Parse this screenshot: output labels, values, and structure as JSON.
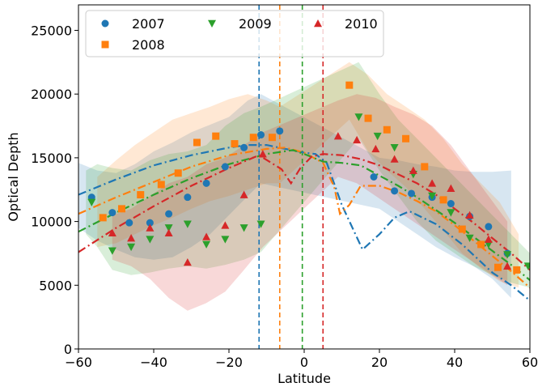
{
  "chart_data": {
    "type": "scatter",
    "xlabel": "Latitude",
    "ylabel": "Optical Depth",
    "xlim": [
      -60,
      60
    ],
    "ylim": [
      0,
      27000
    ],
    "xticks": [
      -60,
      -40,
      -20,
      0,
      20,
      40,
      60
    ],
    "yticks": [
      0,
      5000,
      10000,
      15000,
      20000,
      25000
    ],
    "legend": {
      "placement": "top-left",
      "columns": 3
    },
    "grid": false,
    "series": [
      {
        "name": "2007",
        "color": "#1f77b4",
        "marker": "circle",
        "points": [
          [
            -56.5,
            11900
          ],
          [
            -51,
            10700
          ],
          [
            -46.5,
            9900
          ],
          [
            -41,
            9900
          ],
          [
            -36,
            10600
          ],
          [
            -31,
            11900
          ],
          [
            -26,
            13000
          ],
          [
            -21,
            14300
          ],
          [
            -16,
            15800
          ],
          [
            -11.5,
            16800
          ],
          [
            -6.5,
            17100
          ],
          [
            18.5,
            13500
          ],
          [
            24,
            12400
          ],
          [
            28.5,
            12200
          ],
          [
            34,
            11900
          ],
          [
            39,
            11400
          ],
          [
            44,
            10400
          ],
          [
            49,
            9600
          ],
          [
            54,
            7500
          ]
        ],
        "fit_line": [
          [
            -60,
            12100
          ],
          [
            -50,
            13300
          ],
          [
            -40,
            14400
          ],
          [
            -30,
            15200
          ],
          [
            -20,
            15800
          ],
          [
            -15,
            16000
          ],
          [
            -10,
            16000
          ],
          [
            -5,
            15700
          ],
          [
            0,
            15400
          ],
          [
            3,
            15300
          ],
          [
            6,
            14600
          ],
          [
            10,
            11300
          ],
          [
            15.5,
            7800
          ],
          [
            20,
            9000
          ],
          [
            24,
            10300
          ],
          [
            28,
            10800
          ],
          [
            35,
            9800
          ],
          [
            42,
            8200
          ],
          [
            50,
            6000
          ],
          [
            55,
            5000
          ],
          [
            60,
            3800
          ]
        ],
        "band": {
          "x": [
            -60,
            -55,
            -50,
            -45,
            -40,
            -35,
            -30,
            -25,
            -20,
            -15,
            -11.5,
            20,
            25,
            30,
            35,
            40,
            45,
            50,
            55
          ],
          "upper": [
            14600,
            14000,
            13800,
            14500,
            15500,
            16200,
            17000,
            17600,
            18200,
            19500,
            20000,
            15000,
            14800,
            14500,
            14300,
            14000,
            13900,
            13900,
            14000
          ],
          "lower": [
            9500,
            8500,
            7800,
            7200,
            7000,
            7200,
            8000,
            9000,
            10500,
            12000,
            13000,
            11000,
            10000,
            9000,
            8000,
            7200,
            6500,
            5500,
            4000
          ]
        }
      },
      {
        "name": "2008",
        "color": "#ff7f0e",
        "marker": "square",
        "points": [
          [
            -53.5,
            10300
          ],
          [
            -48.5,
            11000
          ],
          [
            -43.5,
            12100
          ],
          [
            -38,
            12900
          ],
          [
            -33.5,
            13800
          ],
          [
            -28.5,
            16200
          ],
          [
            -23.5,
            16700
          ],
          [
            -18.5,
            16100
          ],
          [
            -13.5,
            16600
          ],
          [
            -8.5,
            16600
          ],
          [
            12,
            20700
          ],
          [
            17,
            18100
          ],
          [
            22,
            17200
          ],
          [
            27,
            16500
          ],
          [
            32,
            14300
          ],
          [
            37,
            11700
          ],
          [
            42,
            9400
          ],
          [
            47,
            8200
          ],
          [
            51.5,
            6400
          ],
          [
            56.5,
            6200
          ]
        ],
        "fit_line": [
          [
            -60,
            10600
          ],
          [
            -50,
            11900
          ],
          [
            -40,
            13100
          ],
          [
            -30,
            14300
          ],
          [
            -20,
            15200
          ],
          [
            -10,
            15700
          ],
          [
            -5,
            15800
          ],
          [
            0,
            15400
          ],
          [
            5,
            14600
          ],
          [
            8,
            12700
          ],
          [
            9.5,
            10600
          ],
          [
            12,
            11300
          ],
          [
            15,
            12800
          ],
          [
            20,
            12800
          ],
          [
            25,
            12300
          ],
          [
            30,
            11600
          ],
          [
            35,
            10800
          ],
          [
            40,
            9700
          ],
          [
            45,
            8500
          ],
          [
            50,
            7300
          ],
          [
            55,
            6100
          ],
          [
            60,
            4800
          ]
        ],
        "band": {
          "x": [
            -55,
            -50,
            -45,
            -40,
            -35,
            -30,
            -25,
            -20,
            -15,
            -10,
            -6.5,
            12,
            17,
            22,
            27,
            32,
            37,
            42,
            47,
            52,
            57
          ],
          "upper": [
            13500,
            14800,
            16000,
            17000,
            18000,
            18500,
            19000,
            19600,
            20000,
            19500,
            19000,
            22500,
            21500,
            20000,
            19000,
            18000,
            16500,
            14500,
            13000,
            11500,
            9000
          ],
          "lower": [
            8000,
            8300,
            9000,
            9700,
            10300,
            11000,
            11600,
            12000,
            12500,
            13000,
            13000,
            18000,
            15500,
            14000,
            12700,
            11000,
            9300,
            7500,
            6300,
            5300,
            4800
          ]
        }
      },
      {
        "name": "2009",
        "color": "#2ca02c",
        "marker": "triangle-down",
        "points": [
          [
            -56.5,
            11500
          ],
          [
            -51,
            7700
          ],
          [
            -46,
            8000
          ],
          [
            -41,
            8600
          ],
          [
            -36,
            9500
          ],
          [
            -31,
            9800
          ],
          [
            -26,
            8200
          ],
          [
            -21,
            8600
          ],
          [
            -16,
            9500
          ],
          [
            -11.5,
            9800
          ],
          [
            14.5,
            18200
          ],
          [
            19.5,
            16700
          ],
          [
            24,
            15800
          ],
          [
            29,
            13700
          ],
          [
            34,
            12000
          ],
          [
            39,
            10700
          ],
          [
            44,
            8700
          ],
          [
            49,
            8200
          ],
          [
            54,
            7400
          ],
          [
            59.5,
            6500
          ]
        ],
        "fit_line": [
          [
            -60,
            9200
          ],
          [
            -50,
            10700
          ],
          [
            -40,
            12100
          ],
          [
            -30,
            13400
          ],
          [
            -20,
            14500
          ],
          [
            -10,
            15300
          ],
          [
            -3,
            15600
          ],
          [
            0,
            15300
          ],
          [
            5,
            14700
          ],
          [
            10,
            14600
          ],
          [
            15,
            14400
          ],
          [
            20,
            13600
          ],
          [
            25,
            12800
          ],
          [
            30,
            11900
          ],
          [
            35,
            10900
          ],
          [
            40,
            9900
          ],
          [
            45,
            8800
          ],
          [
            50,
            7700
          ],
          [
            55,
            6600
          ],
          [
            60,
            5400
          ]
        ],
        "band": {
          "x": [
            -58,
            -55,
            -51,
            -46,
            -41,
            -36,
            -31,
            -26,
            -21,
            -16,
            -11.5,
            14.5,
            20,
            25,
            30,
            35,
            40,
            45,
            50,
            55,
            60
          ],
          "upper": [
            14000,
            14500,
            14200,
            14000,
            14800,
            15300,
            15500,
            16000,
            17500,
            18500,
            19000,
            22500,
            20000,
            18000,
            16500,
            15000,
            13500,
            12000,
            10500,
            9000,
            7500
          ],
          "lower": [
            9000,
            8000,
            6200,
            5800,
            6000,
            6300,
            6500,
            6300,
            6600,
            7000,
            7600,
            16500,
            14000,
            12000,
            10000,
            8500,
            7500,
            6500,
            5800,
            5200,
            4800
          ]
        }
      },
      {
        "name": "2010",
        "color": "#d62728",
        "marker": "triangle-up",
        "points": [
          [
            -51,
            9100
          ],
          [
            -46,
            8700
          ],
          [
            -41,
            9500
          ],
          [
            -36,
            9100
          ],
          [
            -31,
            6800
          ],
          [
            -26,
            8800
          ],
          [
            -21,
            9700
          ],
          [
            -16,
            12100
          ],
          [
            -11,
            15300
          ],
          [
            9,
            16700
          ],
          [
            14,
            16400
          ],
          [
            19,
            15700
          ],
          [
            24,
            14900
          ],
          [
            29,
            14000
          ],
          [
            34,
            13000
          ],
          [
            39,
            12600
          ],
          [
            44,
            10500
          ],
          [
            49,
            8600
          ],
          [
            54,
            6500
          ]
        ],
        "fit_line": [
          [
            -60,
            7600
          ],
          [
            -50,
            9500
          ],
          [
            -40,
            11200
          ],
          [
            -30,
            12800
          ],
          [
            -20,
            14200
          ],
          [
            -12,
            15200
          ],
          [
            -6,
            14100
          ],
          [
            -3.5,
            13000
          ],
          [
            -1,
            14200
          ],
          [
            2,
            15100
          ],
          [
            5,
            15300
          ],
          [
            10,
            15200
          ],
          [
            15,
            14900
          ],
          [
            20,
            14400
          ],
          [
            25,
            13700
          ],
          [
            30,
            13000
          ],
          [
            35,
            12100
          ],
          [
            40,
            11000
          ],
          [
            45,
            9900
          ],
          [
            50,
            8700
          ],
          [
            55,
            7500
          ],
          [
            60,
            6200
          ]
        ],
        "band": {
          "x": [
            -51,
            -46,
            -41,
            -36,
            -31,
            -26,
            -21,
            -16,
            -11,
            9,
            14,
            19,
            24,
            29,
            34,
            39,
            44,
            49,
            54
          ],
          "upper": [
            10500,
            11000,
            12000,
            13000,
            13500,
            14500,
            15000,
            16000,
            17000,
            19500,
            20000,
            19700,
            19000,
            18400,
            17500,
            16000,
            14000,
            12000,
            10000
          ],
          "lower": [
            7000,
            6500,
            5500,
            4000,
            3000,
            3600,
            4500,
            6200,
            8000,
            13500,
            13000,
            12000,
            11000,
            10000,
            9000,
            8000,
            7000,
            6000,
            5000
          ]
        }
      }
    ],
    "vlines": [
      {
        "x": -12,
        "color": "#1f77b4",
        "style": "dashed"
      },
      {
        "x": -6.5,
        "color": "#ff7f0e",
        "style": "dashed"
      },
      {
        "x": -0.5,
        "color": "#2ca02c",
        "style": "dashed"
      },
      {
        "x": 5,
        "color": "#d62728",
        "style": "dashed"
      }
    ]
  }
}
